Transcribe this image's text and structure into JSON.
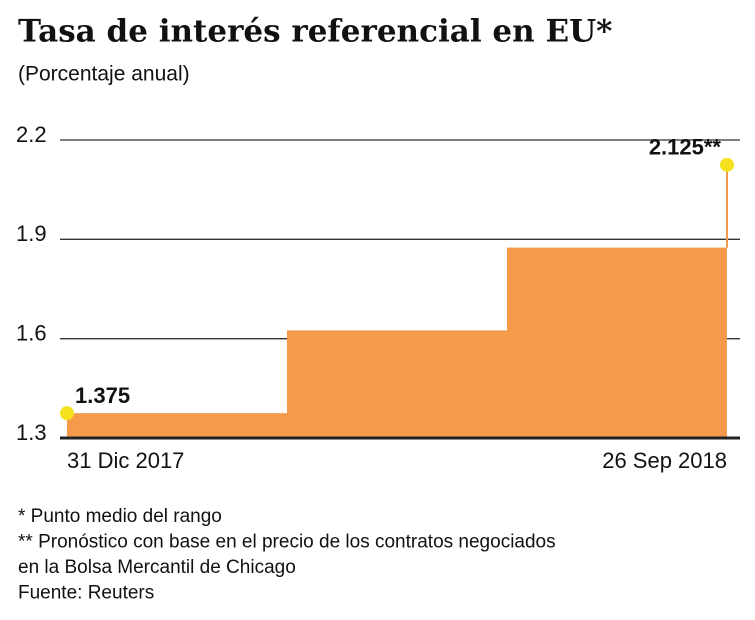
{
  "chart_data": {
    "type": "step-area",
    "title": "Tasa de interés referencial en EU*",
    "subtitle": "(Porcentaje anual)",
    "categories": [
      "31 Dic 2017",
      null,
      null,
      "26 Sep 2018"
    ],
    "values": [
      1.375,
      1.625,
      1.875,
      2.125
    ],
    "value_labels": [
      "1.375",
      null,
      null,
      "2.125**"
    ],
    "color": "#f5994a",
    "marker_color": "#f5e11d",
    "ylim": [
      1.3,
      2.2
    ],
    "yticks": [
      1.3,
      1.6,
      1.9,
      2.2
    ],
    "grid": true,
    "notes": [
      "* Punto medio del rango",
      "** Pronóstico con base en el precio de los contratos negociados",
      "en la Bolsa Mercantil de Chicago",
      "Fuente: Reuters"
    ]
  }
}
